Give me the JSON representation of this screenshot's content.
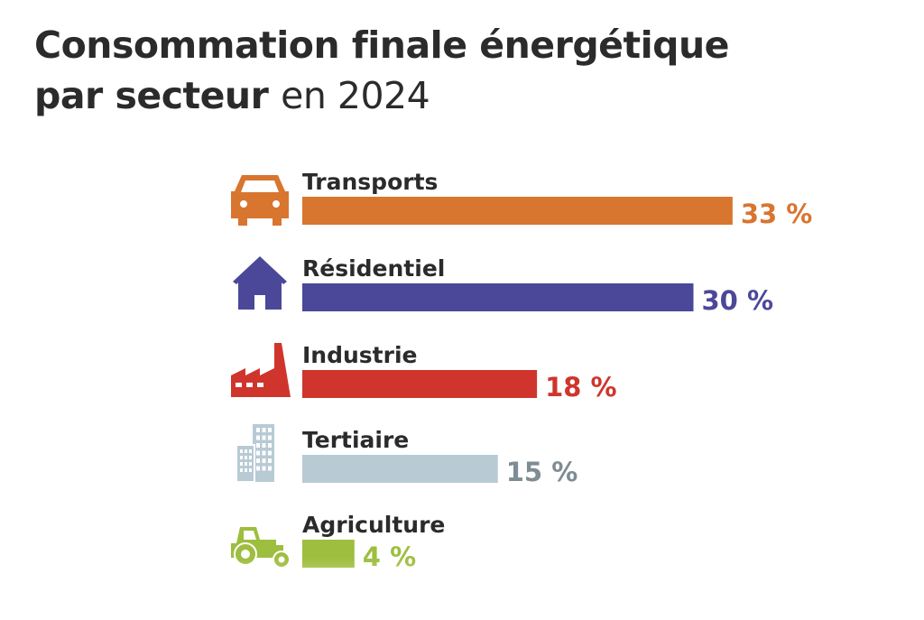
{
  "chart_data": {
    "type": "bar",
    "orientation": "horizontal",
    "title": "Consommation finale énergétique par secteur",
    "title_main": "Consommation finale énergétique",
    "title_line2_bold": "par secteur",
    "title_line2_light": "en 2024",
    "unit": "%",
    "categories": [
      "Transports",
      "Résidentiel",
      "Industrie",
      "Tertiaire",
      "Agriculture"
    ],
    "values": [
      33,
      30,
      18,
      15,
      4
    ],
    "value_labels": [
      "33 %",
      "30 %",
      "18 %",
      "15 %",
      "4 %"
    ],
    "icons": [
      "car-icon",
      "house-icon",
      "factory-icon",
      "office-building-icon",
      "tractor-icon"
    ],
    "colors": [
      "#D8752F",
      "#4B4899",
      "#CF352C",
      "#B8CAD4",
      "#9DBE3E"
    ],
    "label_colors": [
      "#D8752F",
      "#4B4899",
      "#CF352C",
      "#7E8C94",
      "#9DBE3E"
    ],
    "grid": false,
    "legend": "none"
  }
}
